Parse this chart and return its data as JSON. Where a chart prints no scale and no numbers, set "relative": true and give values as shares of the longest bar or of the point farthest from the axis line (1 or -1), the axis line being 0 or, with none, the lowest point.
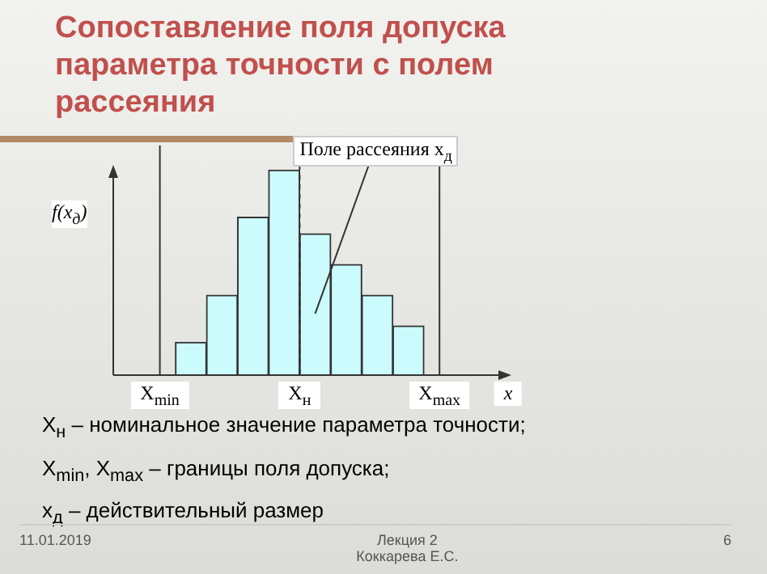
{
  "chart_data": {
    "type": "bar",
    "title": "Сопоставление поля допуска параметра точности с полем рассеяния",
    "ylabel": "f(x$_{д}$)",
    "xlabel": "x",
    "categories": [
      null,
      null,
      null,
      null,
      null,
      null,
      null,
      null
    ],
    "values": [
      0.16,
      0.39,
      0.77,
      1,
      0.69,
      0.54,
      0.39,
      0.24
    ],
    "relative": true,
    "color": "#ccfbfd",
    "legend": false,
    "ref_lines": [
      {
        "axis": "x",
        "label": "X$_{min}$",
        "line_style": "solid"
      },
      {
        "axis": "x",
        "label": "X$_{н}$",
        "line_style": "dashed"
      },
      {
        "axis": "x",
        "label": "X$_{max}$",
        "line_style": "solid"
      }
    ],
    "annotations": [
      "Поле рассеяния x$_{д}$",
      "X$_{н}$ – номинальное значение параметра точности;",
      "X$_{min}$, X$_{max}$ – границы поля допуска;",
      "x$_{д}$ – действительный размер",
      "11.01.2019",
      "Лекция 2\nКоккарева Е.С.",
      "6"
    ]
  }
}
